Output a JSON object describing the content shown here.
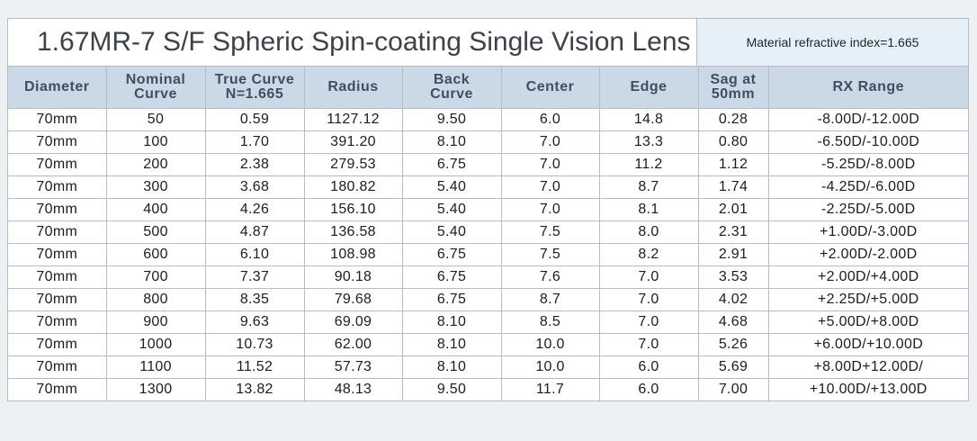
{
  "title": "1.67MR-7 S/F Spheric Spin-coating Single Vision Lens",
  "material": "Material refractive index=1.665",
  "headers": [
    [
      "Diameter"
    ],
    [
      "Nominal",
      "Curve"
    ],
    [
      "True Curve",
      "N=1.665"
    ],
    [
      "Radius"
    ],
    [
      "Back",
      "Curve"
    ],
    [
      "Center"
    ],
    [
      "Edge"
    ],
    [
      "Sag at",
      "50mm"
    ],
    [
      "RX Range"
    ]
  ],
  "rows": [
    [
      "70mm",
      "50",
      "0.59",
      "1127.12",
      "9.50",
      "6.0",
      "14.8",
      "0.28",
      "-8.00D/-12.00D"
    ],
    [
      "70mm",
      "100",
      "1.70",
      "391.20",
      "8.10",
      "7.0",
      "13.3",
      "0.80",
      "-6.50D/-10.00D"
    ],
    [
      "70mm",
      "200",
      "2.38",
      "279.53",
      "6.75",
      "7.0",
      "11.2",
      "1.12",
      "-5.25D/-8.00D"
    ],
    [
      "70mm",
      "300",
      "3.68",
      "180.82",
      "5.40",
      "7.0",
      "8.7",
      "1.74",
      "-4.25D/-6.00D"
    ],
    [
      "70mm",
      "400",
      "4.26",
      "156.10",
      "5.40",
      "7.0",
      "8.1",
      "2.01",
      "-2.25D/-5.00D"
    ],
    [
      "70mm",
      "500",
      "4.87",
      "136.58",
      "5.40",
      "7.5",
      "8.0",
      "2.31",
      "+1.00D/-3.00D"
    ],
    [
      "70mm",
      "600",
      "6.10",
      "108.98",
      "6.75",
      "7.5",
      "8.2",
      "2.91",
      "+2.00D/-2.00D"
    ],
    [
      "70mm",
      "700",
      "7.37",
      "90.18",
      "6.75",
      "7.6",
      "7.0",
      "3.53",
      "+2.00D/+4.00D"
    ],
    [
      "70mm",
      "800",
      "8.35",
      "79.68",
      "6.75",
      "8.7",
      "7.0",
      "4.02",
      "+2.25D/+5.00D"
    ],
    [
      "70mm",
      "900",
      "9.63",
      "69.09",
      "8.10",
      "8.5",
      "7.0",
      "4.68",
      "+5.00D/+8.00D"
    ],
    [
      "70mm",
      "1000",
      "10.73",
      "62.00",
      "8.10",
      "10.0",
      "7.0",
      "5.26",
      "+6.00D/+10.00D"
    ],
    [
      "70mm",
      "1100",
      "11.52",
      "57.73",
      "8.10",
      "10.0",
      "6.0",
      "5.69",
      "+8.00D+12.00D/"
    ],
    [
      "70mm",
      "1300",
      "13.82",
      "48.13",
      "9.50",
      "11.7",
      "6.0",
      "7.00",
      "+10.00D/+13.00D"
    ]
  ],
  "colors": {
    "page_background": "#eef1f4",
    "header_background": "#cbd8e5",
    "header_text": "#3e4f62",
    "material_background": "#e6f0f8",
    "grid": "#b6bcc3"
  }
}
